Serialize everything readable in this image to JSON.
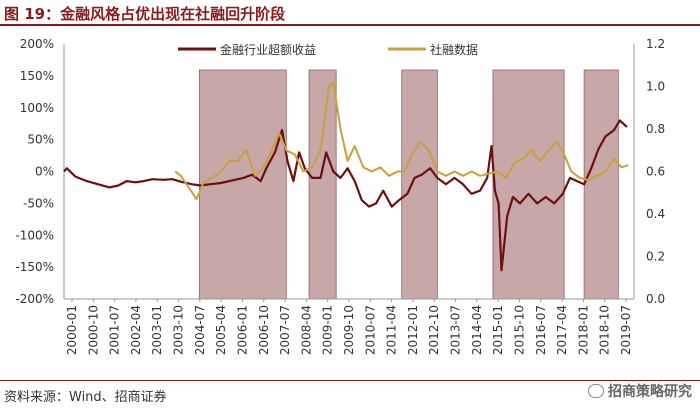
{
  "header": {
    "title": "图 19：金融风格占优出现在社融回升阶段"
  },
  "footer": {
    "source": "资料来源：Wind、招商证券",
    "watermark": "招商策略研究"
  },
  "chart_data": {
    "type": "line",
    "title": "",
    "y_left": {
      "ticks": [
        "200%",
        "150%",
        "100%",
        "50%",
        "0%",
        "-50%",
        "-100%",
        "-150%",
        "-200%"
      ],
      "range": [
        -2.0,
        2.0
      ]
    },
    "y_right": {
      "ticks": [
        "1.2",
        "1.0",
        "0.8",
        "0.6",
        "0.4",
        "0.2",
        "0.0"
      ],
      "range": [
        0.0,
        1.2
      ]
    },
    "x_labels": [
      "2000-01",
      "2000-10",
      "2001-07",
      "2002-04",
      "2003-01",
      "2003-10",
      "2004-07",
      "2005-04",
      "2006-01",
      "2006-10",
      "2007-07",
      "2008-04",
      "2009-01",
      "2009-10",
      "2010-07",
      "2011-04",
      "2012-01",
      "2012-10",
      "2013-07",
      "2014-04",
      "2015-01",
      "2015-10",
      "2016-07",
      "2017-04",
      "2018-01",
      "2018-10",
      "2019-07"
    ],
    "shaded_periods": [
      {
        "start": 2004.75,
        "end": 2007.8
      },
      {
        "start": 2008.6,
        "end": 2009.55
      },
      {
        "start": 2011.85,
        "end": 2013.1
      },
      {
        "start": 2015.05,
        "end": 2017.55
      },
      {
        "start": 2018.25,
        "end": 2019.45
      }
    ],
    "series": [
      {
        "name": "金融行业超额收益",
        "axis": "left",
        "color": "#6e0f0f",
        "points": [
          [
            2000.0,
            0.0
          ],
          [
            2000.1,
            0.05
          ],
          [
            2000.4,
            -0.08
          ],
          [
            2000.8,
            -0.15
          ],
          [
            2001.2,
            -0.2
          ],
          [
            2001.6,
            -0.25
          ],
          [
            2001.9,
            -0.22
          ],
          [
            2002.2,
            -0.15
          ],
          [
            2002.5,
            -0.17
          ],
          [
            2002.8,
            -0.15
          ],
          [
            2003.1,
            -0.12
          ],
          [
            2003.5,
            -0.13
          ],
          [
            2003.8,
            -0.12
          ],
          [
            2004.1,
            -0.16
          ],
          [
            2004.5,
            -0.2
          ],
          [
            2004.8,
            -0.22
          ],
          [
            2005.1,
            -0.2
          ],
          [
            2005.5,
            -0.18
          ],
          [
            2005.9,
            -0.14
          ],
          [
            2006.3,
            -0.1
          ],
          [
            2006.6,
            -0.05
          ],
          [
            2006.9,
            -0.15
          ],
          [
            2007.1,
            0.05
          ],
          [
            2007.4,
            0.3
          ],
          [
            2007.65,
            0.65
          ],
          [
            2007.85,
            0.15
          ],
          [
            2008.05,
            -0.15
          ],
          [
            2008.25,
            0.3
          ],
          [
            2008.45,
            0.05
          ],
          [
            2008.7,
            -0.1
          ],
          [
            2009.0,
            -0.1
          ],
          [
            2009.2,
            0.3
          ],
          [
            2009.45,
            0.0
          ],
          [
            2009.7,
            -0.1
          ],
          [
            2009.95,
            0.05
          ],
          [
            2010.2,
            -0.15
          ],
          [
            2010.45,
            -0.45
          ],
          [
            2010.7,
            -0.55
          ],
          [
            2010.95,
            -0.5
          ],
          [
            2011.2,
            -0.3
          ],
          [
            2011.5,
            -0.55
          ],
          [
            2011.75,
            -0.45
          ],
          [
            2012.05,
            -0.35
          ],
          [
            2012.3,
            -0.1
          ],
          [
            2012.55,
            -0.05
          ],
          [
            2012.85,
            0.05
          ],
          [
            2013.1,
            -0.1
          ],
          [
            2013.4,
            -0.2
          ],
          [
            2013.7,
            -0.1
          ],
          [
            2014.0,
            -0.2
          ],
          [
            2014.3,
            -0.35
          ],
          [
            2014.6,
            -0.3
          ],
          [
            2014.85,
            -0.1
          ],
          [
            2015.0,
            0.4
          ],
          [
            2015.12,
            -0.3
          ],
          [
            2015.25,
            -0.5
          ],
          [
            2015.35,
            -1.55
          ],
          [
            2015.55,
            -0.7
          ],
          [
            2015.75,
            -0.4
          ],
          [
            2016.0,
            -0.5
          ],
          [
            2016.3,
            -0.35
          ],
          [
            2016.6,
            -0.5
          ],
          [
            2016.9,
            -0.4
          ],
          [
            2017.2,
            -0.5
          ],
          [
            2017.5,
            -0.35
          ],
          [
            2017.75,
            -0.1
          ],
          [
            2018.0,
            -0.15
          ],
          [
            2018.25,
            -0.2
          ],
          [
            2018.5,
            0.05
          ],
          [
            2018.75,
            0.35
          ],
          [
            2019.0,
            0.55
          ],
          [
            2019.3,
            0.65
          ],
          [
            2019.5,
            0.8
          ],
          [
            2019.75,
            0.7
          ]
        ]
      },
      {
        "name": "社融数据",
        "axis": "right",
        "color": "#c9a13c",
        "points": [
          [
            2003.9,
            0.6
          ],
          [
            2004.1,
            0.58
          ],
          [
            2004.4,
            0.52
          ],
          [
            2004.65,
            0.47
          ],
          [
            2004.9,
            0.55
          ],
          [
            2005.2,
            0.57
          ],
          [
            2005.5,
            0.6
          ],
          [
            2005.8,
            0.65
          ],
          [
            2006.1,
            0.65
          ],
          [
            2006.4,
            0.7
          ],
          [
            2006.7,
            0.58
          ],
          [
            2007.0,
            0.62
          ],
          [
            2007.3,
            0.7
          ],
          [
            2007.55,
            0.78
          ],
          [
            2007.8,
            0.7
          ],
          [
            2008.1,
            0.68
          ],
          [
            2008.4,
            0.6
          ],
          [
            2008.7,
            0.62
          ],
          [
            2009.0,
            0.7
          ],
          [
            2009.15,
            0.85
          ],
          [
            2009.3,
            1.0
          ],
          [
            2009.45,
            1.02
          ],
          [
            2009.7,
            0.8
          ],
          [
            2009.95,
            0.65
          ],
          [
            2010.2,
            0.72
          ],
          [
            2010.5,
            0.62
          ],
          [
            2010.8,
            0.6
          ],
          [
            2011.1,
            0.62
          ],
          [
            2011.4,
            0.58
          ],
          [
            2011.7,
            0.6
          ],
          [
            2011.95,
            0.6
          ],
          [
            2012.2,
            0.68
          ],
          [
            2012.5,
            0.74
          ],
          [
            2012.8,
            0.7
          ],
          [
            2013.1,
            0.6
          ],
          [
            2013.4,
            0.58
          ],
          [
            2013.7,
            0.6
          ],
          [
            2014.0,
            0.58
          ],
          [
            2014.3,
            0.6
          ],
          [
            2014.6,
            0.58
          ],
          [
            2014.9,
            0.59
          ],
          [
            2015.2,
            0.6
          ],
          [
            2015.5,
            0.57
          ],
          [
            2015.8,
            0.64
          ],
          [
            2016.1,
            0.66
          ],
          [
            2016.4,
            0.7
          ],
          [
            2016.7,
            0.65
          ],
          [
            2017.0,
            0.7
          ],
          [
            2017.3,
            0.74
          ],
          [
            2017.55,
            0.68
          ],
          [
            2017.8,
            0.6
          ],
          [
            2018.1,
            0.57
          ],
          [
            2018.4,
            0.56
          ],
          [
            2018.7,
            0.58
          ],
          [
            2019.0,
            0.6
          ],
          [
            2019.3,
            0.66
          ],
          [
            2019.55,
            0.62
          ],
          [
            2019.8,
            0.63
          ]
        ]
      }
    ],
    "legend": "top"
  }
}
